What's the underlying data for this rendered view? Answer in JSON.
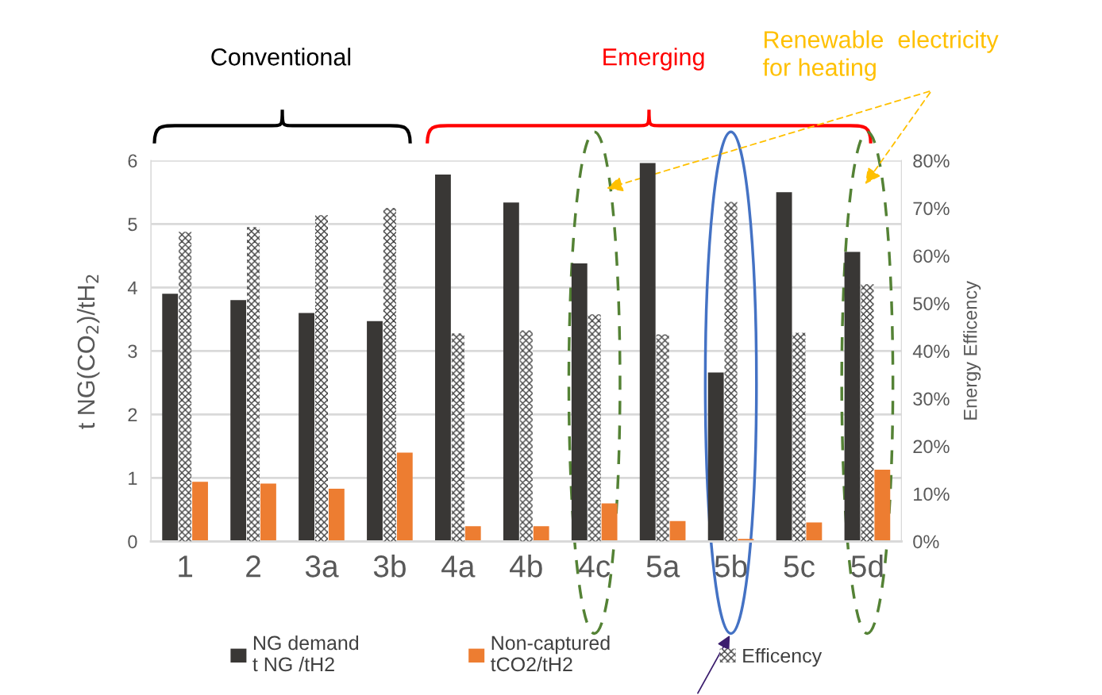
{
  "chart_data": {
    "type": "bar",
    "categories": [
      "1",
      "2",
      "3a",
      "3b",
      "4a",
      "4b",
      "4c",
      "5a",
      "5b",
      "5c",
      "5d"
    ],
    "series": [
      {
        "name": "NG demand\nt NG /tH2",
        "color": "#393735",
        "values": [
          3.9,
          3.8,
          3.6,
          3.47,
          5.78,
          5.34,
          4.38,
          5.96,
          2.66,
          5.5,
          4.56
        ]
      },
      {
        "name": "Non-captured\ntCO2/tH2",
        "color": "#ed7d31",
        "values": [
          0.94,
          0.91,
          0.83,
          1.4,
          0.24,
          0.24,
          0.6,
          0.32,
          0.04,
          0.3,
          1.13
        ]
      },
      {
        "name": "Efficency",
        "color": "#404040",
        "axis": "y2",
        "values": [
          65,
          66,
          68.5,
          70,
          43.7,
          44.3,
          47.7,
          43.5,
          71.3,
          43.8,
          54
        ]
      }
    ],
    "ylabel": "t NG(CO$_{2}$)/tH$_{2}$",
    "y2label": "Energy Efficency",
    "ylim": [
      0,
      6
    ],
    "yticks": [
      0,
      1,
      2,
      3,
      4,
      5,
      6
    ],
    "y2lim": [
      0,
      80
    ],
    "y2ticks": [
      {
        "value": 0,
        "label": "0%"
      },
      {
        "value": 10,
        "label": "10%"
      },
      {
        "value": 20,
        "label": "20%"
      },
      {
        "value": 30,
        "label": "30%"
      },
      {
        "value": 40,
        "label": "40%"
      },
      {
        "value": 50,
        "label": "50%"
      },
      {
        "value": 60,
        "label": "60%"
      },
      {
        "value": 70,
        "label": "70%"
      },
      {
        "value": 80,
        "label": "80%"
      }
    ],
    "annotations": [
      "Conventional",
      "Emerging",
      "Renewable  electricity\nfor heating"
    ],
    "grid": "y",
    "legend": "bottom"
  }
}
